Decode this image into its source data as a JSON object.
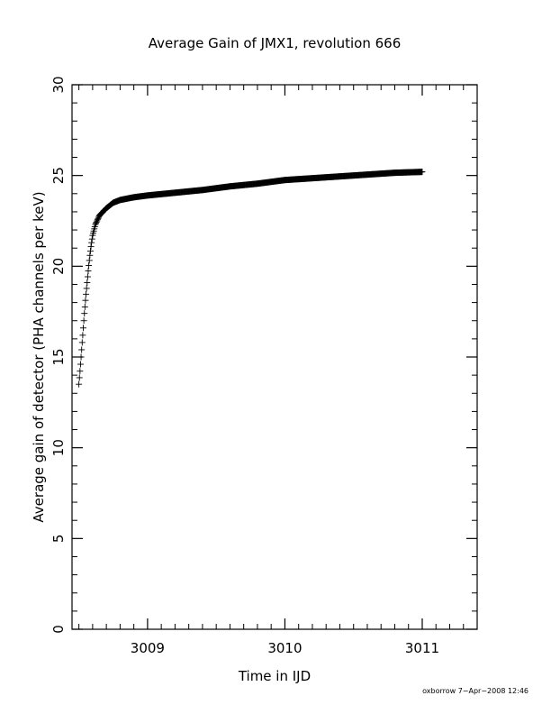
{
  "chart_data": {
    "type": "scatter",
    "title": "Average Gain of JMX1, revolution 666",
    "xlabel": "Time in IJD",
    "ylabel": "Average gain of detector (PHA channels per keV)",
    "xlim": [
      3008.45,
      3011.4
    ],
    "ylim": [
      0,
      30
    ],
    "x_ticks": [
      "3009",
      "3010",
      "3011"
    ],
    "y_ticks": [
      "0",
      "5",
      "10",
      "15",
      "20",
      "25",
      "30"
    ],
    "grid": false,
    "marker": "plus",
    "x_range_of_points": [
      3008.5,
      3011.0
    ],
    "points_sampled": [
      [
        3008.5,
        13.5
      ],
      [
        3008.51,
        14.4
      ],
      [
        3008.52,
        15.4
      ],
      [
        3008.53,
        16.4
      ],
      [
        3008.54,
        17.4
      ],
      [
        3008.55,
        18.3
      ],
      [
        3008.56,
        19.1
      ],
      [
        3008.57,
        19.9
      ],
      [
        3008.58,
        20.6
      ],
      [
        3008.59,
        21.2
      ],
      [
        3008.6,
        21.7
      ],
      [
        3008.62,
        22.3
      ],
      [
        3008.65,
        22.8
      ],
      [
        3008.7,
        23.2
      ],
      [
        3008.75,
        23.5
      ],
      [
        3008.8,
        23.65
      ],
      [
        3008.9,
        23.8
      ],
      [
        3009.0,
        23.9
      ],
      [
        3009.2,
        24.05
      ],
      [
        3009.4,
        24.2
      ],
      [
        3009.6,
        24.4
      ],
      [
        3009.8,
        24.55
      ],
      [
        3010.0,
        24.75
      ],
      [
        3010.2,
        24.85
      ],
      [
        3010.4,
        24.95
      ],
      [
        3010.6,
        25.05
      ],
      [
        3010.8,
        25.15
      ],
      [
        3011.0,
        25.2
      ]
    ]
  },
  "footer": {
    "credit": "oxborrow   7−Apr−2008 12:46"
  }
}
